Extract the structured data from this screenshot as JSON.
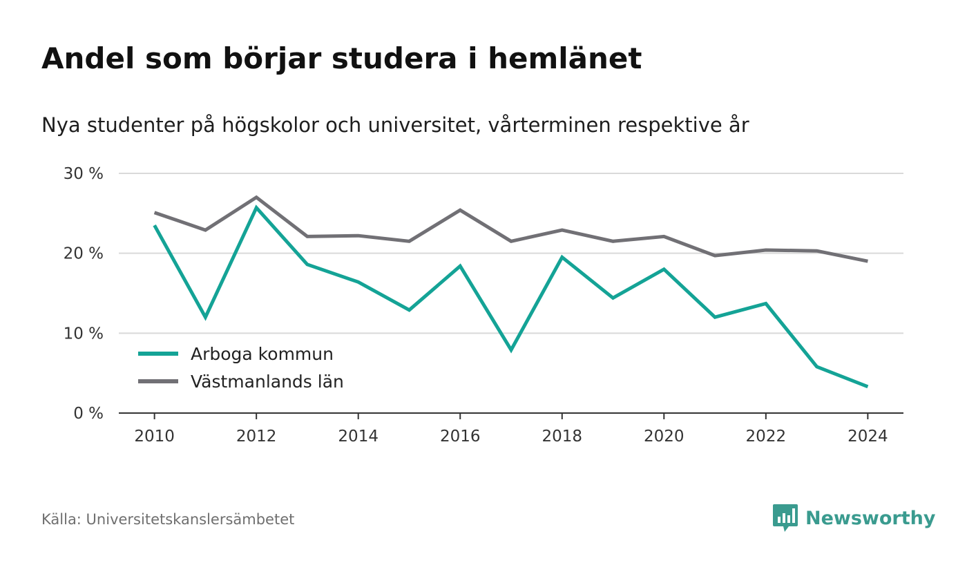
{
  "title": "Andel som börjar studera i hemlänet",
  "subtitle": "Nya studenter på högskolor och universitet, vårterminen respektive år",
  "source": "Källa: Universitetskanslersämbetet",
  "brand": {
    "name": "Newsworthy",
    "color": "#3a9b8f"
  },
  "chart_data": {
    "type": "line",
    "title": "Andel som börjar studera i hemlänet",
    "subtitle": "Nya studenter på högskolor och universitet, vårterminen respektive år",
    "x": [
      2010,
      2011,
      2012,
      2013,
      2014,
      2015,
      2016,
      2017,
      2018,
      2019,
      2020,
      2021,
      2022,
      2023,
      2024
    ],
    "x_ticks": [
      2010,
      2012,
      2014,
      2016,
      2018,
      2020,
      2022,
      2024
    ],
    "xlim": [
      2009.3,
      2024.7
    ],
    "y_ticks": [
      0,
      10,
      20,
      30
    ],
    "y_tick_labels": [
      "0 %",
      "10 %",
      "20 %",
      "30 %"
    ],
    "ylim": [
      0,
      30
    ],
    "grid": true,
    "legend_position": "bottom-left",
    "series": [
      {
        "name": "Arboga kommun",
        "color": "#14a396",
        "values": [
          23.5,
          12.0,
          25.7,
          18.6,
          16.4,
          12.9,
          18.4,
          7.9,
          19.5,
          14.4,
          18.0,
          12.0,
          13.7,
          5.8,
          3.3
        ]
      },
      {
        "name": "Västmanlands län",
        "color": "#717075",
        "values": [
          25.1,
          22.9,
          27.0,
          22.1,
          22.2,
          21.5,
          25.4,
          21.5,
          22.9,
          21.5,
          22.1,
          19.7,
          20.4,
          20.3,
          19.0
        ]
      }
    ]
  }
}
